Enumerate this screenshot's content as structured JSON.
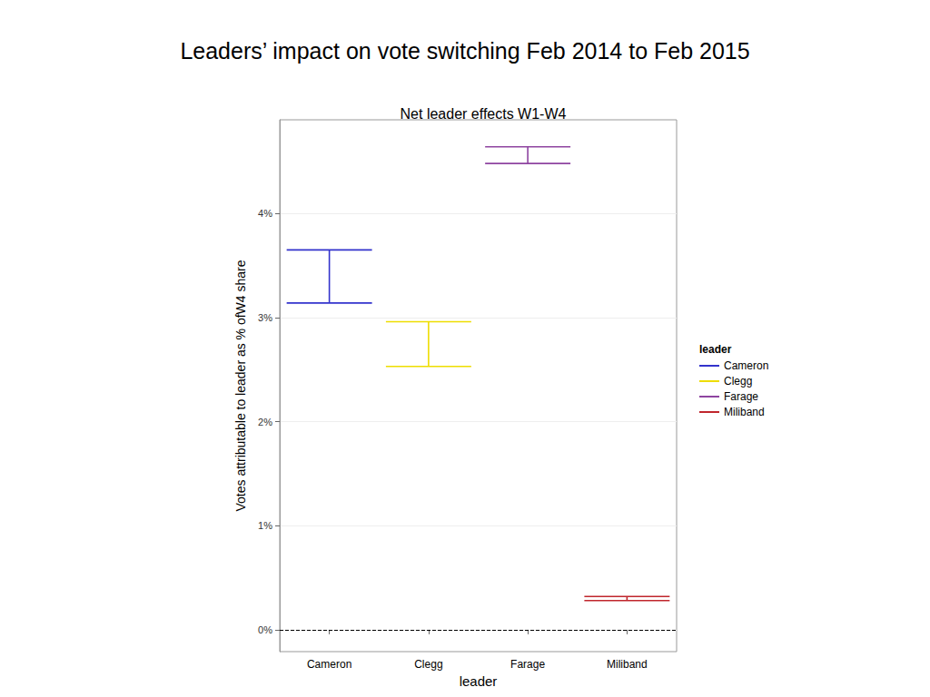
{
  "chart_data": {
    "type": "errorbar",
    "page_title": "Leaders’ impact on vote switching Feb 2014 to Feb 2015",
    "title": "Net leader effects W1-W4",
    "xlabel": "leader",
    "ylabel": "Votes attributable to leader as % ofW4 share",
    "categories": [
      "Cameron",
      "Clegg",
      "Farage",
      "Miliband"
    ],
    "colors": [
      "#3333cc",
      "#eedd00",
      "#8e44a0",
      "#c0262d"
    ],
    "low": [
      3.14,
      2.53,
      4.48,
      0.28
    ],
    "high": [
      3.65,
      2.96,
      4.64,
      0.32
    ],
    "reference_line": 0,
    "ylim": [
      -0.21,
      4.9
    ],
    "yticks": [
      {
        "value": 0,
        "label": "0%"
      },
      {
        "value": 1,
        "label": "1%"
      },
      {
        "value": 2,
        "label": "2%"
      },
      {
        "value": 3,
        "label": "3%"
      },
      {
        "value": 4,
        "label": "4%"
      }
    ],
    "grid": true,
    "legend": "right",
    "legend_title": "leader"
  }
}
